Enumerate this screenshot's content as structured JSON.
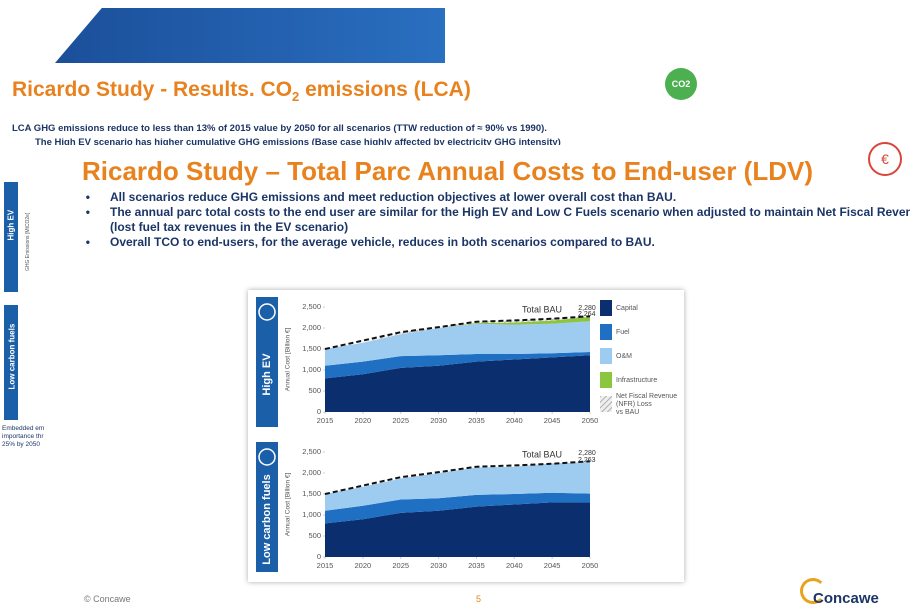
{
  "back_slide": {
    "title": "Ricardo Study - Results. CO",
    "title_sub": "2",
    "title_end": " emissions (LCA)",
    "line1": "LCA GHG emissions reduce to less than 13% of 2015 value by 2050 for all scenarios (TTW reduction of ≈ 90% vs 1990).",
    "line2": "The High EV scenario has higher cumulative GHG emissions (Base case highly affected by electricity GHG intensity)",
    "side_label_1": "High EV",
    "side_label_2": "Low carbon fuels",
    "side_axis": "GHG Emissions [MtCO2e]",
    "side_note": "Embedded em importance thr 25% by 2050",
    "badge": "CO2"
  },
  "slide": {
    "title": "Ricardo Study – Total Parc Annual Costs to End-user (LDV)",
    "bullets": [
      "All scenarios reduce GHG emissions and meet reduction objectives at lower overall cost than BAU.",
      "The annual parc total costs to the end user are similar for the High EV and Low C Fuels scenario when adjusted to maintain Net Fiscal Revenue (lost fuel tax revenues in the EV scenario)",
      "Overall TCO to end-users, for the average vehicle, reduces in both scenarios compared to BAU."
    ],
    "footer_left": "© Concawe",
    "page_number": "5",
    "logo": "Concawe"
  },
  "chart_data": [
    {
      "type": "stacked_area",
      "panel_label": "High EV",
      "y_label": "Annual Cost [Billion €]",
      "x": [
        2015,
        2020,
        2025,
        2030,
        2035,
        2040,
        2045,
        2050
      ],
      "xlim": [
        2015,
        2050
      ],
      "xticks": [
        2015,
        2020,
        2025,
        2030,
        2035,
        2040,
        2045,
        2050
      ],
      "ylim": [
        0,
        2500
      ],
      "yticks": [
        0,
        500,
        {
          "value": 1000,
          "label": "1,000"
        },
        {
          "value": 1500,
          "label": "1,500"
        },
        {
          "value": 2000,
          "label": "2,000"
        },
        {
          "value": 2500,
          "label": "2,500"
        }
      ],
      "legend": true,
      "series": [
        {
          "name": "Capital",
          "color": "#0b2f6e",
          "values": [
            800,
            900,
            1050,
            1100,
            1200,
            1250,
            1300,
            1350
          ]
        },
        {
          "name": "Fuel",
          "color": "#1f6fc2",
          "values": [
            300,
            300,
            280,
            250,
            180,
            130,
            100,
            80
          ]
        },
        {
          "name": "O&M",
          "color": "#9ecbf0",
          "values": [
            400,
            450,
            520,
            650,
            720,
            700,
            700,
            730
          ]
        },
        {
          "name": "Infrastructure",
          "color": "#8cc63f",
          "values": [
            0,
            0,
            0,
            0,
            20,
            50,
            80,
            104
          ]
        },
        {
          "name": "Net Fiscal Revenue (NFR) Loss vs BAU",
          "color": "hatch",
          "values": [
            0,
            0,
            50,
            20,
            30,
            50,
            40,
            16
          ]
        }
      ],
      "bau": {
        "name": "Total BAU",
        "values": [
          1500,
          1700,
          1900,
          2020,
          2150,
          2180,
          2220,
          2280
        ],
        "value_labels": [
          null,
          null,
          null,
          null,
          null,
          null,
          null,
          "2,280"
        ]
      },
      "total_label": "2,264"
    },
    {
      "type": "stacked_area",
      "panel_label": "Low carbon fuels",
      "y_label": "Annual Cost [Billion €]",
      "x": [
        2015,
        2020,
        2025,
        2030,
        2035,
        2040,
        2045,
        2050
      ],
      "xlim": [
        2015,
        2050
      ],
      "xticks": [
        2015,
        2020,
        2025,
        2030,
        2035,
        2040,
        2045,
        2050
      ],
      "ylim": [
        0,
        2500
      ],
      "yticks": [
        0,
        500,
        {
          "value": 1000,
          "label": "1,000"
        },
        {
          "value": 1500,
          "label": "1,500"
        },
        {
          "value": 2000,
          "label": "2,000"
        },
        {
          "value": 2500,
          "label": "2,500"
        }
      ],
      "legend": false,
      "series": [
        {
          "name": "Capital",
          "color": "#0b2f6e",
          "values": [
            800,
            900,
            1050,
            1100,
            1200,
            1250,
            1300,
            1300
          ]
        },
        {
          "name": "Fuel",
          "color": "#1f6fc2",
          "values": [
            300,
            320,
            320,
            300,
            280,
            250,
            230,
            210
          ]
        },
        {
          "name": "O&M",
          "color": "#9ecbf0",
          "values": [
            400,
            450,
            500,
            600,
            650,
            650,
            700,
            753
          ]
        }
      ],
      "bau": {
        "name": "Total BAU",
        "values": [
          1500,
          1700,
          1900,
          2020,
          2150,
          2180,
          2220,
          2280
        ],
        "value_labels": [
          null,
          null,
          null,
          null,
          null,
          null,
          null,
          "2,280"
        ]
      },
      "total_label": "2,263"
    }
  ]
}
